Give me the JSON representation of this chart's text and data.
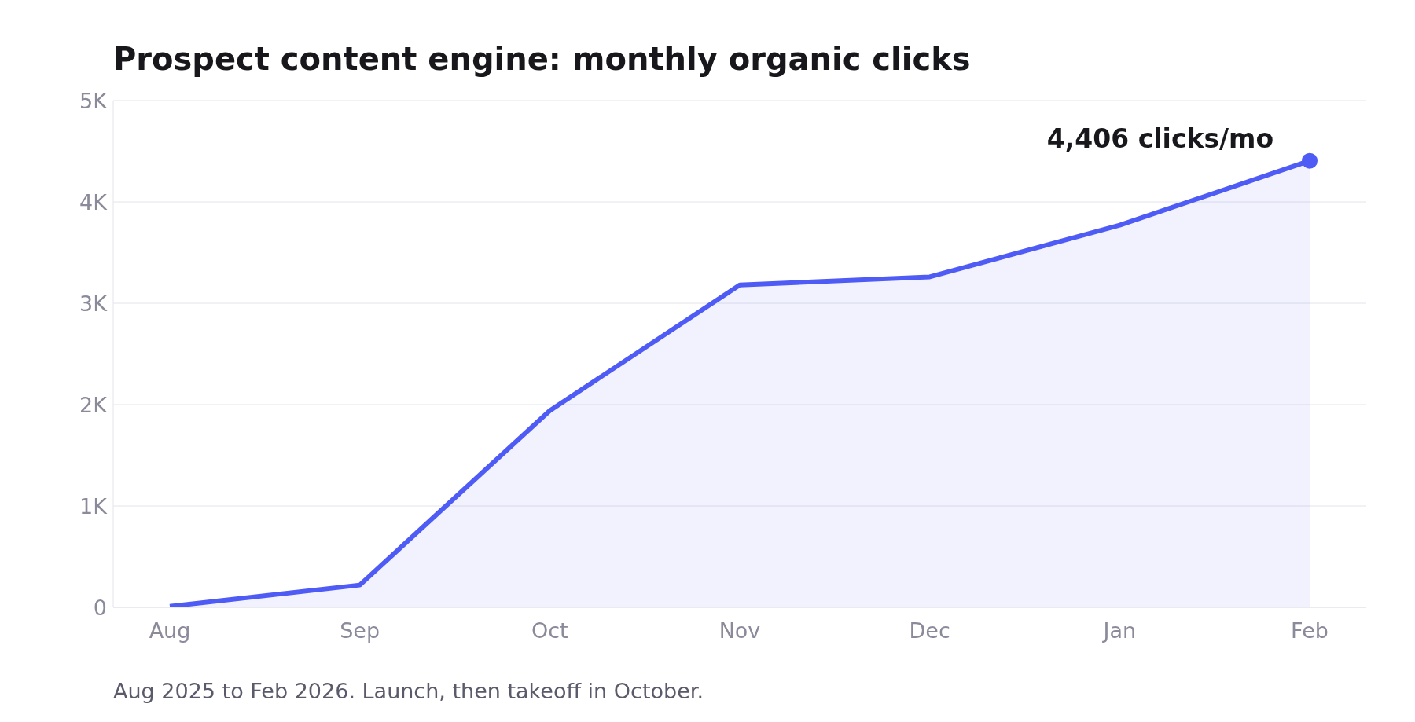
{
  "chart_data": {
    "type": "area",
    "title": "Prospect content engine: monthly organic clicks",
    "categories": [
      "Aug",
      "Sep",
      "Oct",
      "Nov",
      "Dec",
      "Jan",
      "Feb"
    ],
    "series": [
      {
        "color": "#4f5bf5",
        "values": [
          10,
          220,
          1940,
          3180,
          3260,
          3770,
          4406
        ]
      },
      {
        "type": "scatter",
        "color": "#4f5bf5",
        "x": [
          "Feb"
        ],
        "values": [
          4406
        ]
      }
    ],
    "ylim": [
      0,
      5000
    ],
    "yticks": [
      0,
      {
        "value": 1000,
        "label": "1K"
      },
      {
        "value": 2000,
        "label": "2K"
      },
      {
        "value": 3000,
        "label": "3K"
      },
      {
        "value": 4000,
        "label": "4K"
      },
      {
        "value": 5000,
        "label": "5K"
      }
    ],
    "grid": "y",
    "annotations": [
      {
        "text": "4,406 clicks/mo",
        "x": "Feb",
        "y": 4406
      },
      "Aug 2025 to Feb 2026. Launch, then takeoff in October."
    ]
  }
}
